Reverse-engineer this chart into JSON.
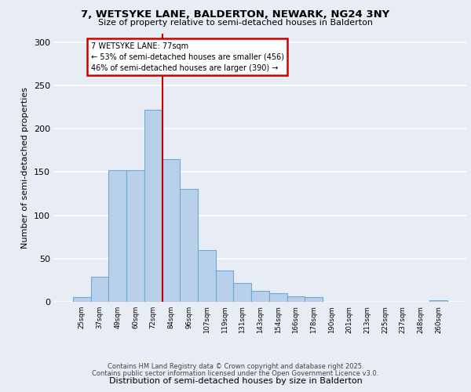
{
  "title_line1": "7, WETSYKE LANE, BALDERTON, NEWARK, NG24 3NY",
  "title_line2": "Size of property relative to semi-detached houses in Balderton",
  "xlabel": "Distribution of semi-detached houses by size in Balderton",
  "ylabel": "Number of semi-detached properties",
  "categories": [
    "25sqm",
    "37sqm",
    "49sqm",
    "60sqm",
    "72sqm",
    "84sqm",
    "96sqm",
    "107sqm",
    "119sqm",
    "131sqm",
    "143sqm",
    "154sqm",
    "166sqm",
    "178sqm",
    "190sqm",
    "201sqm",
    "213sqm",
    "225sqm",
    "237sqm",
    "248sqm",
    "260sqm"
  ],
  "values": [
    5,
    29,
    152,
    152,
    222,
    165,
    130,
    60,
    36,
    22,
    13,
    10,
    6,
    5,
    0,
    0,
    0,
    0,
    0,
    0,
    2
  ],
  "bar_color": "#b8d0ea",
  "bar_edge_color": "#6aaad4",
  "vline_pos": 4.5,
  "annotation_line1": "7 WETSYKE LANE: 77sqm",
  "annotation_line2": "← 53% of semi-detached houses are smaller (456)",
  "annotation_line3": "46% of semi-detached houses are larger (390) →",
  "annotation_box_color": "#ffffff",
  "annotation_box_edge_color": "#cc0000",
  "vline_color": "#cc0000",
  "background_color": "#e8edf5",
  "plot_bg_color": "#e8edf5",
  "grid_color": "#ffffff",
  "ylim": [
    0,
    310
  ],
  "yticks": [
    0,
    50,
    100,
    150,
    200,
    250,
    300
  ],
  "footer_line1": "Contains HM Land Registry data © Crown copyright and database right 2025.",
  "footer_line2": "Contains public sector information licensed under the Open Government Licence v3.0."
}
